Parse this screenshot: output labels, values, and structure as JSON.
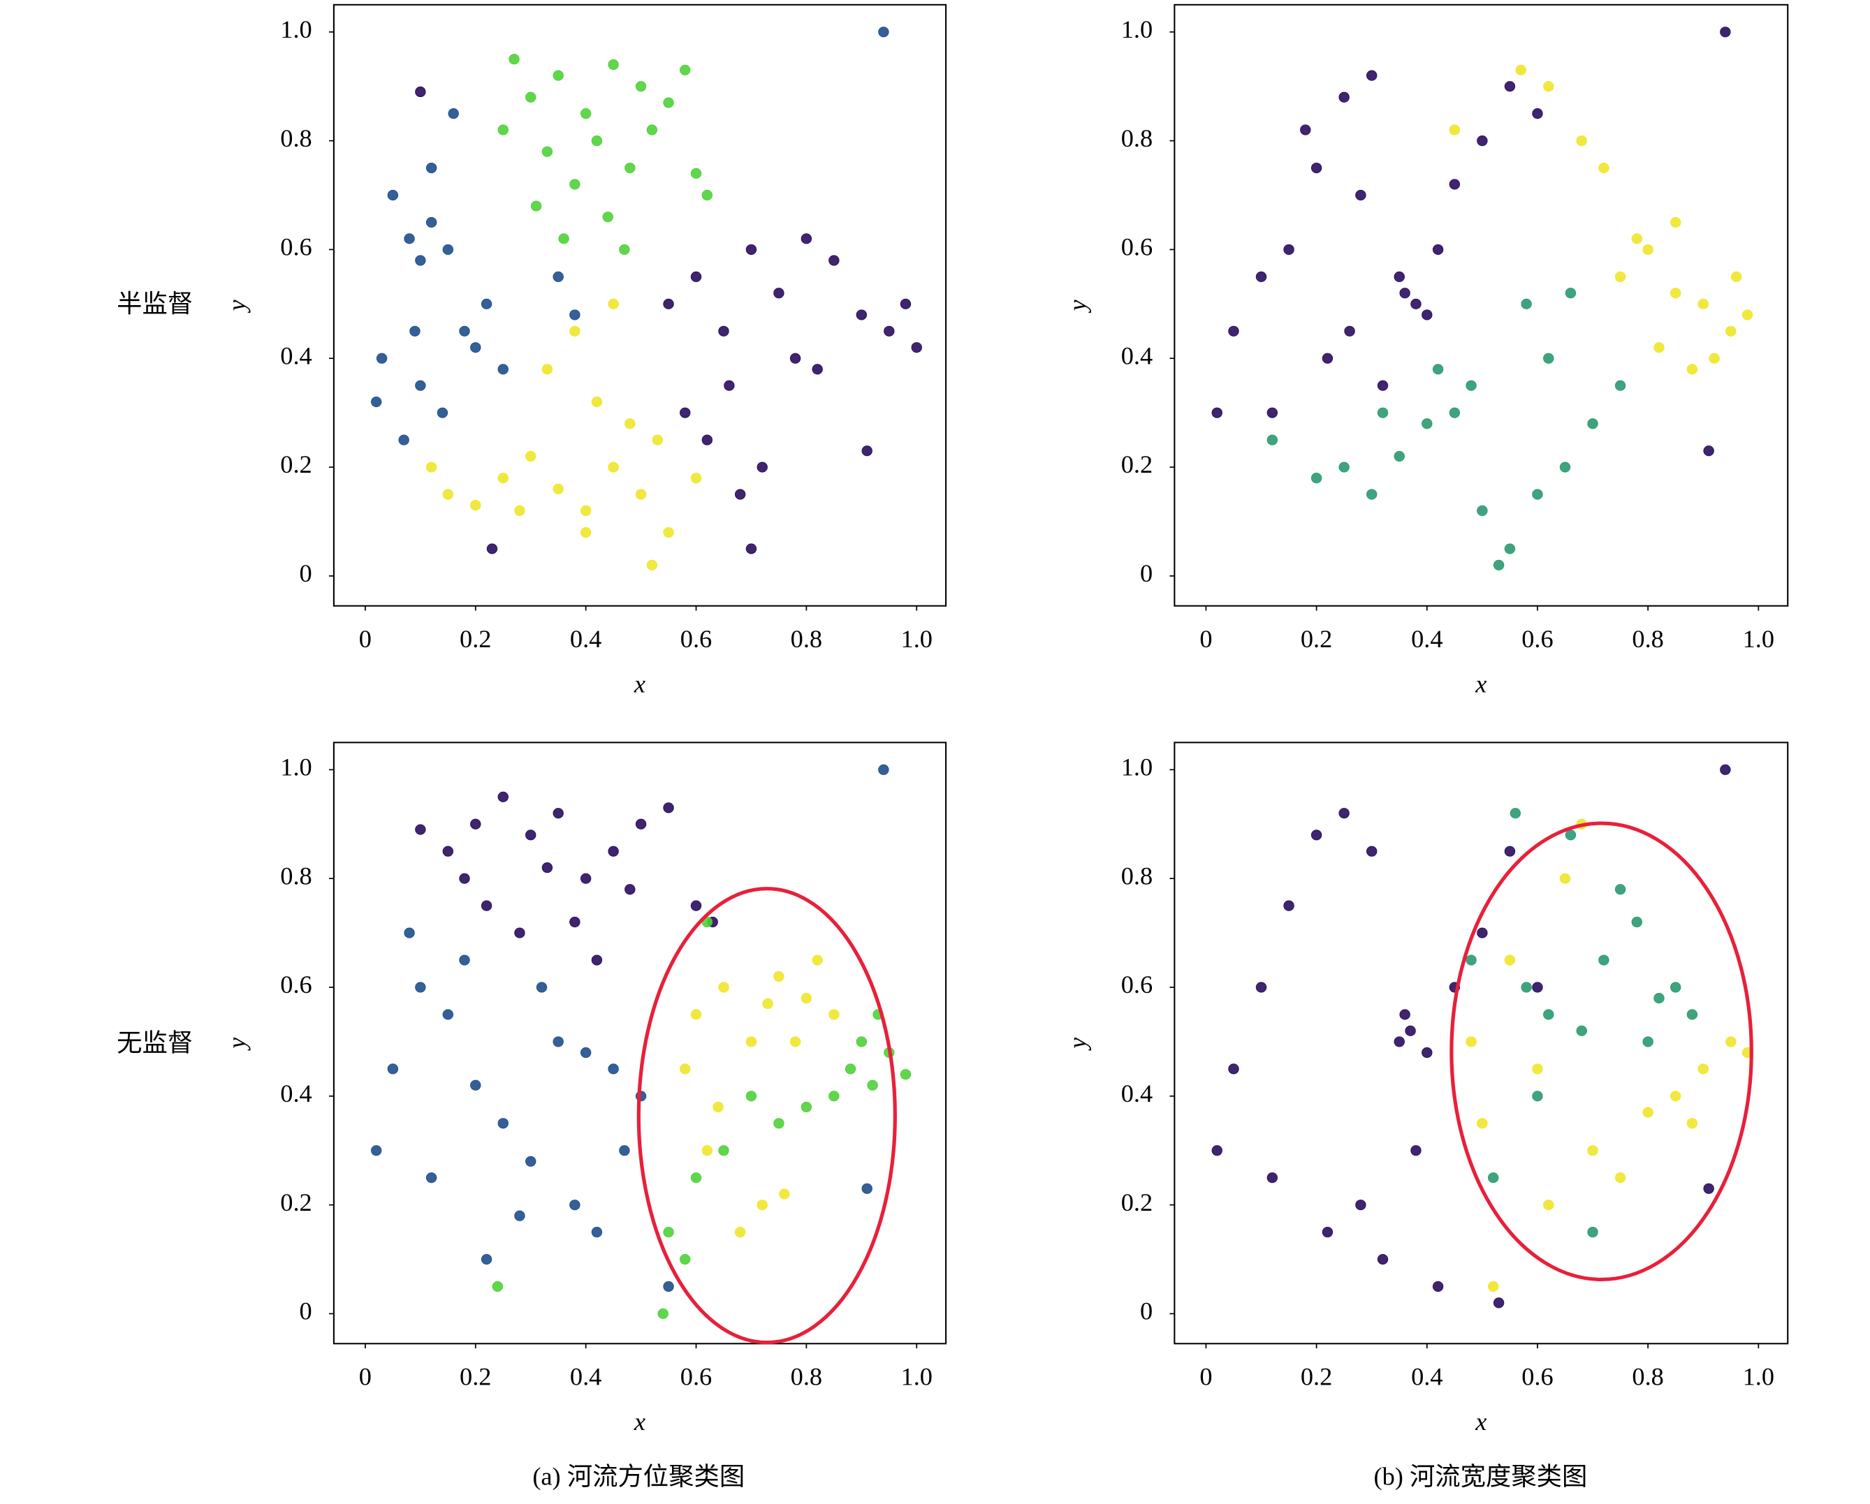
{
  "row_labels": [
    "半监督",
    "无监督"
  ],
  "captions": [
    "(a) 河流方位聚类图",
    "(b) 河流宽度聚类图"
  ],
  "chart_data": [
    {
      "type": "scatter",
      "xlabel": "x",
      "ylabel": "y",
      "xlim": [
        -0.057,
        1.053
      ],
      "ylim": [
        -0.055,
        1.05
      ],
      "xticks": [
        0,
        0.2,
        0.4,
        0.6,
        0.8,
        {
          "value": 1,
          "label": "1.0"
        }
      ],
      "yticks": [
        0,
        0.2,
        0.4,
        0.6,
        0.8,
        {
          "value": 1,
          "label": "1.0"
        }
      ],
      "series": [
        {
          "color": "#4fd13a",
          "x": [
            0.27,
            0.3,
            0.35,
            0.4,
            0.45,
            0.5,
            0.55,
            0.58,
            0.33,
            0.38,
            0.42,
            0.48,
            0.52,
            0.6,
            0.25,
            0.31,
            0.44,
            0.36,
            0.62,
            0.47
          ],
          "y": [
            0.95,
            0.88,
            0.92,
            0.85,
            0.94,
            0.9,
            0.87,
            0.93,
            0.78,
            0.72,
            0.8,
            0.75,
            0.82,
            0.74,
            0.82,
            0.68,
            0.66,
            0.62,
            0.7,
            0.6
          ]
        },
        {
          "color": "#1f4e8c",
          "x": [
            0.08,
            0.1,
            0.12,
            0.15,
            0.05,
            0.03,
            0.18,
            0.2,
            0.1,
            0.14,
            0.22,
            0.25,
            0.02,
            0.07,
            0.35,
            0.38,
            0.16,
            0.12,
            0.94,
            0.09
          ],
          "y": [
            0.62,
            0.58,
            0.65,
            0.6,
            0.7,
            0.4,
            0.45,
            0.42,
            0.35,
            0.3,
            0.5,
            0.38,
            0.32,
            0.25,
            0.55,
            0.48,
            0.85,
            0.75,
            1,
            0.45
          ]
        },
        {
          "color": "#2a0c5e",
          "x": [
            0.55,
            0.6,
            0.65,
            0.7,
            0.75,
            0.8,
            0.85,
            0.9,
            0.95,
            0.98,
            1,
            0.82,
            0.78,
            0.62,
            0.58,
            0.68,
            0.72,
            0.66,
            0.91,
            0.7,
            0.1,
            0.23
          ],
          "y": [
            0.5,
            0.55,
            0.45,
            0.6,
            0.52,
            0.62,
            0.58,
            0.48,
            0.45,
            0.5,
            0.42,
            0.38,
            0.4,
            0.25,
            0.3,
            0.15,
            0.2,
            0.35,
            0.23,
            0.05,
            0.89,
            0.05
          ]
        },
        {
          "color": "#efe62a",
          "x": [
            0.12,
            0.15,
            0.2,
            0.25,
            0.3,
            0.35,
            0.4,
            0.45,
            0.5,
            0.55,
            0.52,
            0.48,
            0.42,
            0.6,
            0.38,
            0.33,
            0.45,
            0.53,
            0.28,
            0.4
          ],
          "y": [
            0.2,
            0.15,
            0.13,
            0.18,
            0.22,
            0.16,
            0.12,
            0.2,
            0.15,
            0.08,
            0.02,
            0.28,
            0.32,
            0.18,
            0.45,
            0.38,
            0.5,
            0.25,
            0.12,
            0.08
          ]
        }
      ]
    },
    {
      "type": "scatter",
      "xlabel": "x",
      "ylabel": "y",
      "xlim": [
        -0.057,
        1.053
      ],
      "ylim": [
        -0.055,
        1.05
      ],
      "xticks": [
        0,
        0.2,
        0.4,
        0.6,
        0.8,
        {
          "value": 1,
          "label": "1.0"
        }
      ],
      "yticks": [
        0,
        0.2,
        0.4,
        0.6,
        0.8,
        {
          "value": 1,
          "label": "1.0"
        }
      ],
      "series": [
        {
          "color": "#2a9a70",
          "x": [
            0.12,
            0.2,
            0.25,
            0.3,
            0.35,
            0.4,
            0.45,
            0.5,
            0.55,
            0.6,
            0.65,
            0.7,
            0.75,
            0.53,
            0.48,
            0.62,
            0.58,
            0.66,
            0.42,
            0.32
          ],
          "y": [
            0.25,
            0.18,
            0.2,
            0.15,
            0.22,
            0.28,
            0.3,
            0.12,
            0.05,
            0.15,
            0.2,
            0.28,
            0.35,
            0.02,
            0.35,
            0.4,
            0.5,
            0.52,
            0.38,
            0.3
          ]
        },
        {
          "color": "#efe62a",
          "x": [
            0.75,
            0.8,
            0.85,
            0.9,
            0.95,
            0.98,
            0.82,
            0.88,
            0.72,
            0.68,
            0.62,
            0.57,
            0.92,
            0.78,
            0.85,
            0.45,
            0.96
          ],
          "y": [
            0.55,
            0.6,
            0.52,
            0.5,
            0.45,
            0.48,
            0.42,
            0.38,
            0.75,
            0.8,
            0.9,
            0.93,
            0.4,
            0.62,
            0.65,
            0.82,
            0.55
          ]
        },
        {
          "color": "#2a0c5e",
          "x": [
            0.05,
            0.1,
            0.15,
            0.2,
            0.25,
            0.3,
            0.35,
            0.38,
            0.4,
            0.36,
            0.42,
            0.45,
            0.5,
            0.28,
            0.22,
            0.12,
            0.02,
            0.32,
            0.55,
            0.6,
            0.94,
            0.91,
            0.18,
            0.26
          ],
          "y": [
            0.45,
            0.55,
            0.6,
            0.75,
            0.88,
            0.92,
            0.55,
            0.5,
            0.48,
            0.52,
            0.6,
            0.72,
            0.8,
            0.7,
            0.4,
            0.3,
            0.3,
            0.35,
            0.9,
            0.85,
            1,
            0.23,
            0.82,
            0.45
          ]
        }
      ]
    },
    {
      "type": "scatter",
      "xlabel": "x",
      "ylabel": "y",
      "xlim": [
        -0.057,
        1.053
      ],
      "ylim": [
        -0.055,
        1.05
      ],
      "xticks": [
        0,
        0.2,
        0.4,
        0.6,
        0.8,
        {
          "value": 1,
          "label": "1.0"
        }
      ],
      "yticks": [
        0,
        0.2,
        0.4,
        0.6,
        0.8,
        {
          "value": 1,
          "label": "1.0"
        }
      ],
      "series": [
        {
          "color": "#1f4e8c",
          "x": [
            0.02,
            0.05,
            0.1,
            0.15,
            0.2,
            0.25,
            0.3,
            0.35,
            0.4,
            0.45,
            0.5,
            0.38,
            0.42,
            0.22,
            0.28,
            0.12,
            0.32,
            0.47,
            0.55,
            0.94,
            0.91,
            0.08,
            0.18
          ],
          "y": [
            0.3,
            0.45,
            0.6,
            0.55,
            0.42,
            0.35,
            0.28,
            0.5,
            0.48,
            0.45,
            0.4,
            0.2,
            0.15,
            0.1,
            0.18,
            0.25,
            0.6,
            0.3,
            0.05,
            1,
            0.23,
            0.7,
            0.65
          ]
        },
        {
          "color": "#2a0c5e",
          "x": [
            0.1,
            0.15,
            0.2,
            0.25,
            0.3,
            0.35,
            0.4,
            0.45,
            0.5,
            0.55,
            0.6,
            0.22,
            0.28,
            0.38,
            0.48,
            0.33,
            0.63,
            0.18,
            0.42
          ],
          "y": [
            0.89,
            0.85,
            0.9,
            0.95,
            0.88,
            0.92,
            0.8,
            0.85,
            0.9,
            0.93,
            0.75,
            0.75,
            0.7,
            0.72,
            0.78,
            0.82,
            0.72,
            0.8,
            0.65
          ]
        },
        {
          "color": "#efe62a",
          "x": [
            0.6,
            0.65,
            0.7,
            0.75,
            0.8,
            0.85,
            0.82,
            0.78,
            0.72,
            0.62,
            0.68,
            0.76,
            0.58,
            0.64,
            0.73
          ],
          "y": [
            0.55,
            0.6,
            0.5,
            0.62,
            0.58,
            0.55,
            0.65,
            0.5,
            0.2,
            0.3,
            0.15,
            0.22,
            0.45,
            0.38,
            0.57
          ]
        },
        {
          "color": "#4fd13a",
          "x": [
            0.88,
            0.9,
            0.92,
            0.95,
            0.98,
            0.85,
            0.8,
            0.75,
            0.7,
            0.65,
            0.6,
            0.55,
            0.62,
            0.58,
            0.93,
            0.24,
            0.54
          ],
          "y": [
            0.45,
            0.5,
            0.42,
            0.48,
            0.44,
            0.4,
            0.38,
            0.35,
            0.4,
            0.3,
            0.25,
            0.15,
            0.72,
            0.1,
            0.55,
            0.05,
            0
          ]
        }
      ]
    },
    {
      "type": "scatter",
      "xlabel": "x",
      "ylabel": "y",
      "xlim": [
        -0.057,
        1.053
      ],
      "ylim": [
        -0.055,
        1.05
      ],
      "xticks": [
        0,
        0.2,
        0.4,
        0.6,
        0.8,
        {
          "value": 1,
          "label": "1.0"
        }
      ],
      "yticks": [
        0,
        0.2,
        0.4,
        0.6,
        0.8,
        {
          "value": 1,
          "label": "1.0"
        }
      ],
      "series": [
        {
          "color": "#efe62a",
          "x": [
            0.48,
            0.5,
            0.55,
            0.6,
            0.65,
            0.7,
            0.75,
            0.85,
            0.9,
            0.95,
            0.98,
            0.88,
            0.62,
            0.52,
            0.68,
            0.8
          ],
          "y": [
            0.5,
            0.35,
            0.65,
            0.45,
            0.8,
            0.3,
            0.25,
            0.4,
            0.45,
            0.5,
            0.48,
            0.35,
            0.2,
            0.05,
            0.9,
            0.37
          ]
        },
        {
          "color": "#2a9a70",
          "x": [
            0.58,
            0.62,
            0.68,
            0.72,
            0.78,
            0.82,
            0.85,
            0.8,
            0.75,
            0.66,
            0.56,
            0.6,
            0.7,
            0.88,
            0.48,
            0.52
          ],
          "y": [
            0.6,
            0.55,
            0.52,
            0.65,
            0.72,
            0.58,
            0.6,
            0.5,
            0.78,
            0.88,
            0.92,
            0.4,
            0.15,
            0.55,
            0.65,
            0.25
          ]
        },
        {
          "color": "#2a0c5e",
          "x": [
            0.02,
            0.05,
            0.1,
            0.15,
            0.2,
            0.25,
            0.3,
            0.35,
            0.37,
            0.4,
            0.45,
            0.5,
            0.38,
            0.36,
            0.28,
            0.22,
            0.12,
            0.32,
            0.42,
            0.55,
            0.94,
            0.91,
            0.6,
            0.53
          ],
          "y": [
            0.3,
            0.45,
            0.6,
            0.75,
            0.88,
            0.92,
            0.85,
            0.5,
            0.52,
            0.48,
            0.6,
            0.7,
            0.3,
            0.55,
            0.2,
            0.15,
            0.25,
            0.1,
            0.05,
            0.85,
            1,
            0.23,
            0.6,
            0.02
          ]
        }
      ]
    }
  ]
}
